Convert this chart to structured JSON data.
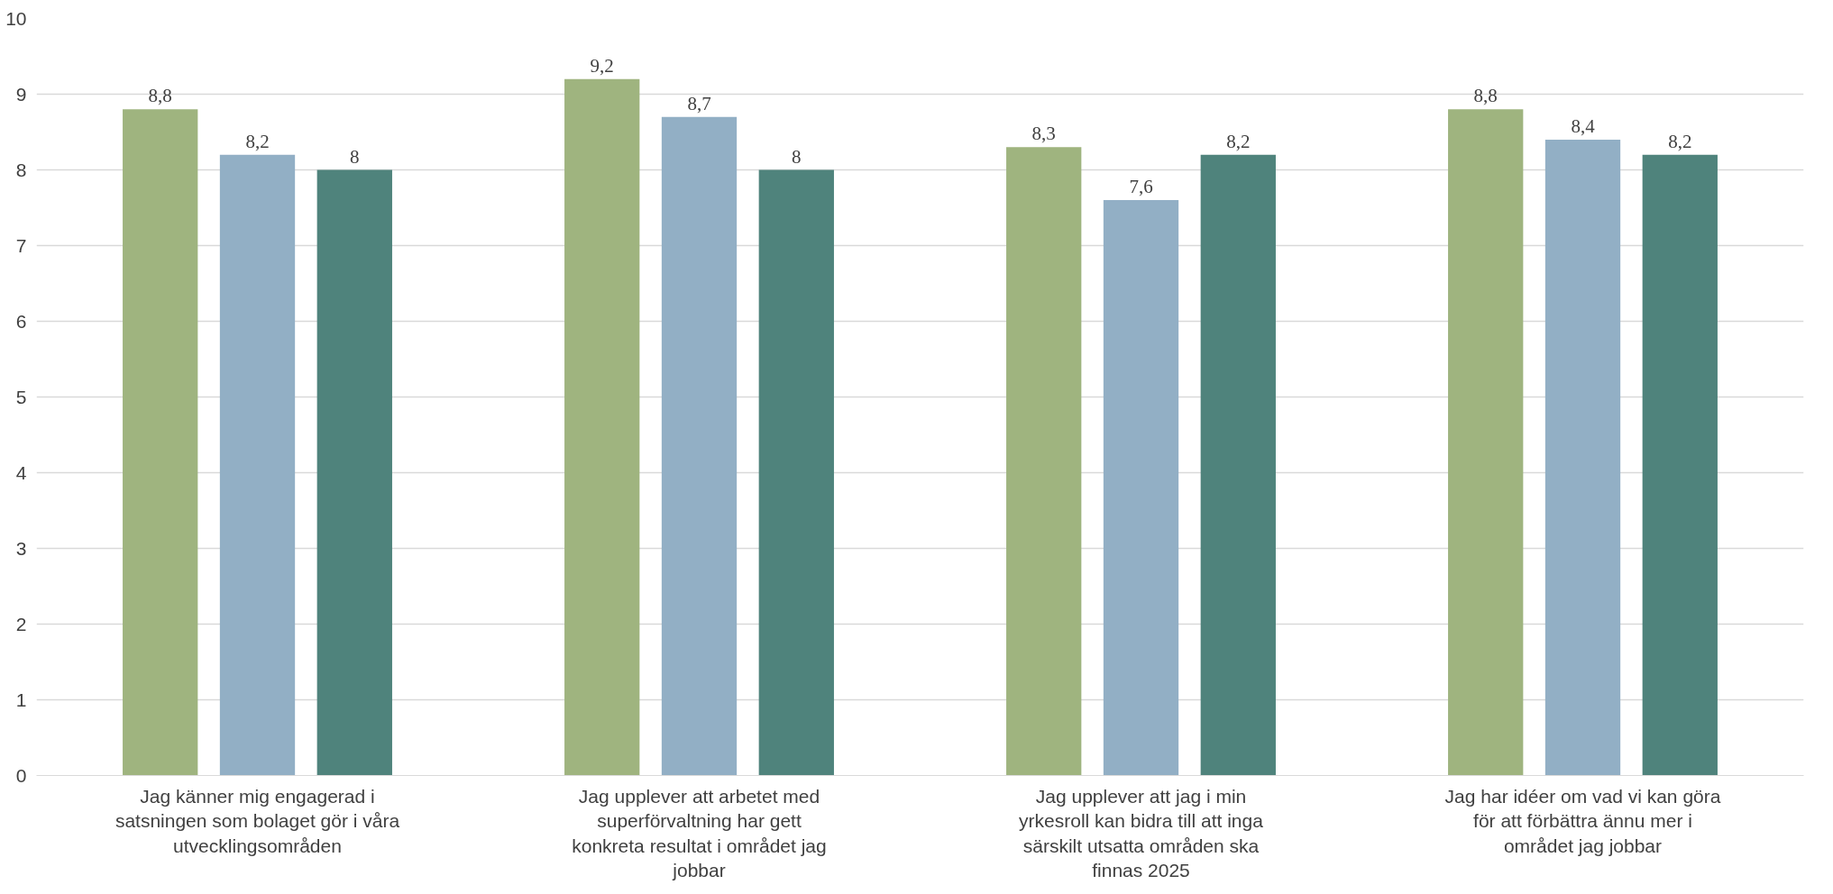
{
  "chart_data": {
    "type": "bar",
    "categories": [
      "Jag känner mig engagerad i satsningen som bolaget gör i våra utvecklingsområden",
      "Jag upplever att arbetet med superförvaltning har gett konkreta resultat i området jag jobbar",
      "Jag upplever att jag i min yrkesroll kan bidra till att inga särskilt utsatta områden ska finnas 2025",
      "Jag har idéer om vad vi kan göra för att förbättra ännu mer i området jag jobbar"
    ],
    "series": [
      {
        "color": "#9fb47f",
        "values": [
          8.8,
          9.2,
          8.3,
          8.8
        ],
        "value_labels": [
          "8,8",
          "9,2",
          "8,3",
          "8,8"
        ]
      },
      {
        "color": "#92afc5",
        "values": [
          8.2,
          8.7,
          7.6,
          8.4
        ],
        "value_labels": [
          "8,2",
          "8,7",
          "7,6",
          "8,4"
        ]
      },
      {
        "color": "#4f837c",
        "values": [
          8,
          8,
          8.2,
          8.2
        ],
        "value_labels": [
          "8",
          "8",
          "8,2",
          "8,2"
        ]
      }
    ],
    "ylim": [
      0,
      10
    ],
    "yticks": [
      0,
      1,
      2,
      3,
      4,
      5,
      6,
      7,
      8,
      9,
      10
    ],
    "grid": "y"
  }
}
